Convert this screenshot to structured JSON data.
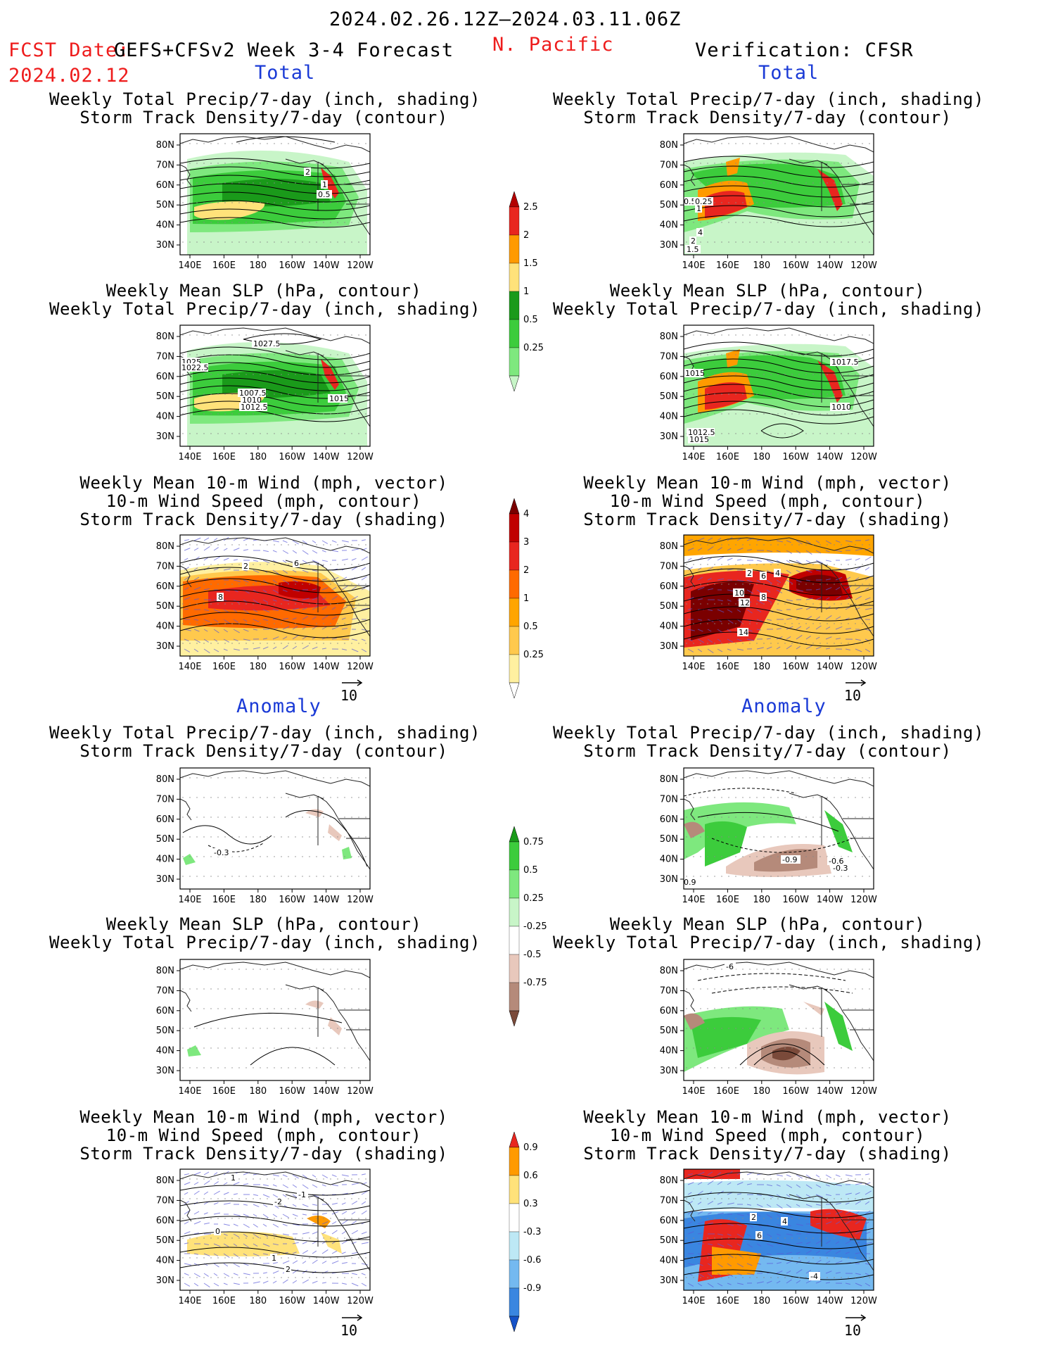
{
  "header": {
    "period": "2024.02.26.12Z–2024.03.11.06Z",
    "fcst_label": "FCST Date:",
    "fcst_model": "GEFS+CFSv2 Week 3-4 Forecast",
    "fcst_date": "2024.02.12",
    "region": "N. Pacific",
    "verification": "Verification: CFSR"
  },
  "sections": {
    "total_label": "Total",
    "anomaly_label": "Anomaly"
  },
  "titles": {
    "precip_storm": [
      "Weekly Total Precip/7-day (inch, shading)",
      "Storm Track Density/7-day (contour)"
    ],
    "slp_precip": [
      "Weekly Mean SLP (hPa, contour)",
      "Weekly Total Precip/7-day (inch, shading)"
    ],
    "wind": [
      "Weekly Mean 10-m Wind (mph, vector)",
      "10-m Wind Speed (mph, contour)",
      "Storm Track Density/7-day (shading)"
    ]
  },
  "axes": {
    "lat_labels": [
      "80N",
      "70N",
      "60N",
      "50N",
      "40N",
      "30N"
    ],
    "lon_labels": [
      "140E",
      "160E",
      "180",
      "160W",
      "140W",
      "120W"
    ]
  },
  "vector_reference": "10",
  "colorbars": {
    "precip_total": {
      "labels": [
        "2.5",
        "2",
        "1.5",
        "1",
        "0.5",
        "0.25"
      ],
      "colors": [
        "#b30000",
        "#e8261f",
        "#ff9a00",
        "#ffe27a",
        "#1a9a1a",
        "#3ccc3c",
        "#7ee87e",
        "#c8f5c8"
      ]
    },
    "storm_total": {
      "labels": [
        "4",
        "3",
        "2",
        "1",
        "0.5",
        "0.25"
      ],
      "colors": [
        "#7a0000",
        "#c00000",
        "#e8261f",
        "#ff6a00",
        "#ffa500",
        "#ffc94d",
        "#fff0a0",
        "#ffffff"
      ]
    },
    "precip_anom": {
      "labels": [
        "0.75",
        "0.5",
        "0.25",
        "-0.25",
        "-0.5",
        "-0.75"
      ],
      "colors": [
        "#1a9a1a",
        "#3ccc3c",
        "#7ee87e",
        "#c8f5c8",
        "#ffffff",
        "#e8c8bc",
        "#b58a7a",
        "#7a4a3a"
      ]
    },
    "storm_anom": {
      "labels": [
        "0.9",
        "0.6",
        "0.3",
        "-0.3",
        "-0.6",
        "-0.9"
      ],
      "colors": [
        "#e8261f",
        "#ff9a00",
        "#ffe27a",
        "#ffffff",
        "#bde8f5",
        "#74b9f0",
        "#3a86e0",
        "#1552c8"
      ]
    }
  },
  "panel_labels": {
    "l_p1": [
      "2",
      "1",
      "0.5"
    ],
    "l_p2": [
      "1027.5",
      "1025",
      "1022.5",
      "1007.5",
      "1010",
      "1012.5",
      "1015"
    ],
    "l_p3": [
      "2",
      "6",
      "8"
    ],
    "l_p4": [
      "-0.3"
    ],
    "l_p6": [
      "1",
      "-1",
      "-2",
      "0",
      "1",
      "2"
    ],
    "r_p1": [
      "0.5",
      "0.25",
      "1",
      "4",
      "2",
      "1.5"
    ],
    "r_p2": [
      "1017.5",
      "1015",
      "1010",
      "1012.5",
      "1015"
    ],
    "r_p3": [
      "2",
      "4",
      "6",
      "8",
      "10",
      "12",
      "14"
    ],
    "r_p4": [
      "-0.9",
      "-0.6",
      "-0.3",
      "0.9"
    ],
    "r_p5": [
      "-6"
    ],
    "r_p6": [
      "2",
      "4",
      "6",
      "-4"
    ]
  }
}
